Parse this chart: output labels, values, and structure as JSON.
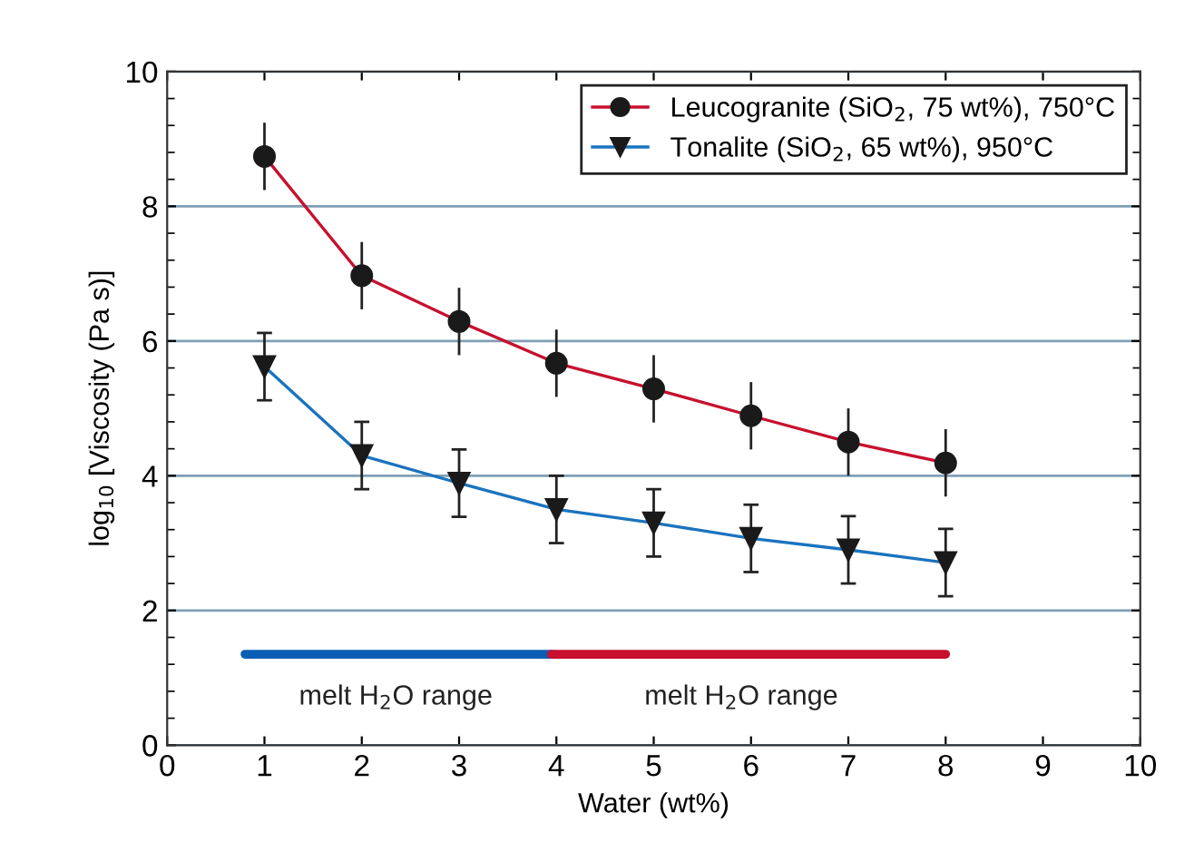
{
  "chart_data": {
    "type": "line",
    "xlabel": "Water (wt%)",
    "ylabel": "log$_{10}$ [Viscosity (Pa s)]",
    "xlim": [
      0,
      10
    ],
    "xticks": [
      0,
      1,
      2,
      3,
      4,
      5,
      6,
      7,
      8,
      9,
      10
    ],
    "ylim": [
      0,
      10
    ],
    "yticks": [
      0,
      2,
      4,
      6,
      8,
      10
    ],
    "grid": "y",
    "legend": "top right",
    "x": [
      1,
      2,
      3,
      4,
      5,
      6,
      7,
      8
    ],
    "series": [
      {
        "name": "Leucogranite (SiO$_{2}$, 75 wt%), 750°C",
        "color": "#c8102e",
        "marker": "circle",
        "values": [
          8.74,
          6.97,
          6.29,
          5.67,
          5.29,
          4.89,
          4.5,
          4.19
        ],
        "errors": [
          0.5,
          0.5,
          0.5,
          0.5,
          0.5,
          0.5,
          0.5,
          0.5
        ]
      },
      {
        "name": "Tonalite (SiO$_{2}$, 65 wt%), 950°C",
        "color": "#1a73bf",
        "marker": "triangle",
        "values": [
          5.62,
          4.3,
          3.89,
          3.5,
          3.3,
          3.07,
          2.9,
          2.71
        ],
        "errors": [
          0.5,
          0.5,
          0.5,
          0.5,
          0.5,
          0.5,
          0.5,
          0.5
        ]
      },
      {
        "color": "#0a5fb4",
        "marker": "none",
        "x": [
          0.8,
          3.95
        ],
        "values": [
          1.35,
          1.35
        ]
      },
      {
        "color": "#c8102e",
        "marker": "none",
        "x": [
          3.95,
          8
        ],
        "values": [
          1.35,
          1.35
        ]
      }
    ],
    "annotations": [
      {
        "text": "melt H$_{2}$O range",
        "x": 2.35,
        "y": 1.35
      },
      {
        "text": "melt H$_{2}$O range",
        "x": 5.9,
        "y": 1.35
      }
    ]
  }
}
